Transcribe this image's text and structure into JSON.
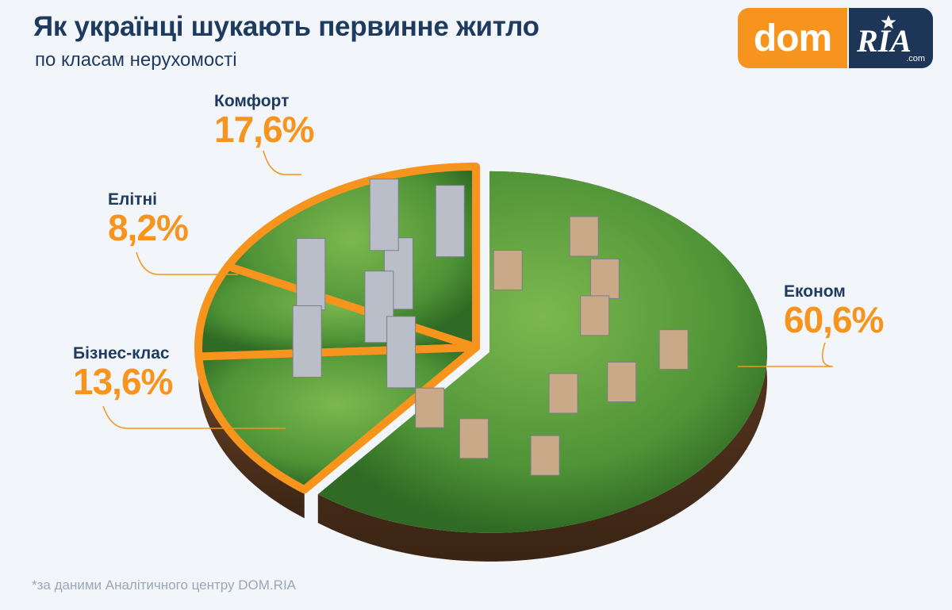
{
  "header": {
    "title": "Як українці шукають первинне житло",
    "subtitle": "по класам нерухомості"
  },
  "logo": {
    "part1": "dom",
    "part2": "RIA",
    "part3": ".com"
  },
  "colors": {
    "accent": "#f7941d",
    "text": "#1e3a5f",
    "grass": "#4e9a3a",
    "soil": "#5a3a22"
  },
  "chart_data": {
    "type": "pie",
    "series": [
      {
        "name": "Комфорт",
        "value": 17.6,
        "label": "17,6%"
      },
      {
        "name": "Елітні",
        "value": 8.2,
        "label": "8,2%"
      },
      {
        "name": "Бізнес-клас",
        "value": 13.6,
        "label": "13,6%"
      },
      {
        "name": "Економ",
        "value": 60.6,
        "label": "60,6%"
      }
    ],
    "legend": "none",
    "exploded": "Економ"
  },
  "footnote": "*за даними Аналітичного центру DOM.RIA"
}
